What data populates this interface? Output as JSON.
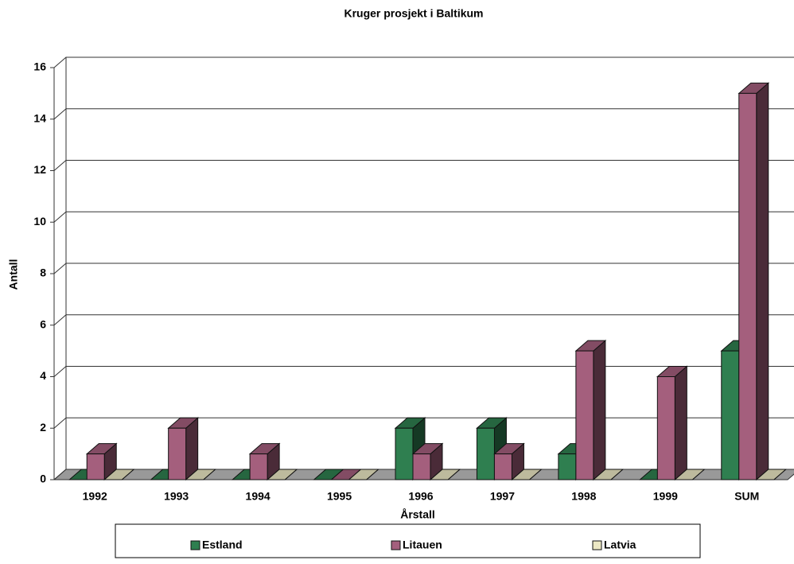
{
  "chart_data": {
    "type": "bar3d",
    "title": "Kruger prosjekt i Baltikum",
    "x_label": "Årstall",
    "y_label": "Antall",
    "categories": [
      "1992",
      "1993",
      "1994",
      "1995",
      "1996",
      "1997",
      "1998",
      "1999",
      "SUM"
    ],
    "series": [
      {
        "name": "Estland",
        "color": "#2f7f50",
        "values": [
          0,
          0,
          0,
          0,
          2,
          2,
          1,
          0,
          5
        ]
      },
      {
        "name": "Litauen",
        "color": "#a45f7d",
        "values": [
          1,
          2,
          1,
          0,
          1,
          1,
          5,
          4,
          15
        ]
      },
      {
        "name": "Latvia",
        "color": "#ece8c4",
        "values": [
          0,
          0,
          0,
          0,
          0,
          0,
          0,
          0,
          0
        ]
      }
    ],
    "ylim": [
      0,
      16
    ],
    "yticks": [
      0,
      2,
      4,
      6,
      8,
      10,
      12,
      14,
      16
    ],
    "grid": true,
    "legend": "bottom"
  }
}
